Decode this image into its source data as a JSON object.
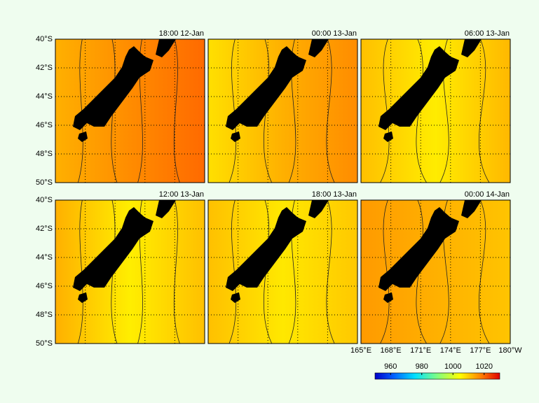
{
  "panels": [
    {
      "title": "18:00 12-Jan"
    },
    {
      "title": "00:00 13-Jan"
    },
    {
      "title": "06:00 13-Jan"
    },
    {
      "title": "12:00 13-Jan"
    },
    {
      "title": "18:00 13-Jan"
    },
    {
      "title": "00:00 14-Jan"
    }
  ],
  "lat_labels": [
    "40°S",
    "42°S",
    "44°S",
    "46°S",
    "48°S",
    "50°S"
  ],
  "lon_labels": [
    "165°E",
    "168°E",
    "171°E",
    "174°E",
    "177°E",
    "180°W"
  ],
  "colorbar": {
    "range": [
      950,
      1030
    ],
    "ticks": [
      960,
      980,
      1000,
      1020
    ]
  }
}
